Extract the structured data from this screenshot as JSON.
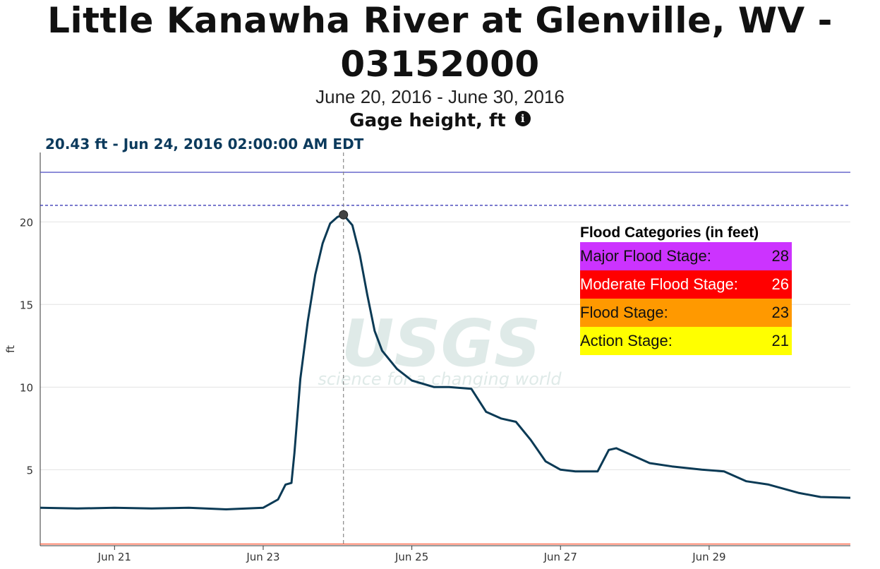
{
  "header": {
    "title_line1": "Little Kanawha River at Glenville, WV -",
    "title_line2": "03152000",
    "date_range": "June 20, 2016 - June 30, 2016",
    "parameter": "Gage height, ft",
    "info_glyph": "i",
    "tooltip": "20.43 ft - Jun 24, 2016 02:00:00 AM EDT"
  },
  "watermark": {
    "logo": "USGS",
    "tagline": "science for a changing world"
  },
  "legend": {
    "title": "Flood Categories (in feet)",
    "items": [
      {
        "label": "Major Flood Stage:",
        "value": "28",
        "color": "#cc33ff",
        "text_color": "#111111"
      },
      {
        "label": "Moderate Flood Stage:",
        "value": "26",
        "color": "#ff0000",
        "text_color": "#ffffff"
      },
      {
        "label": "Flood Stage:",
        "value": "23",
        "color": "#ff9900",
        "text_color": "#111111"
      },
      {
        "label": "Action Stage:",
        "value": "21",
        "color": "#ffff00",
        "text_color": "#111111"
      }
    ]
  },
  "chart_data": {
    "type": "line",
    "ylabel": "ft",
    "xlabel": "",
    "x_ticks": [
      {
        "x": 1,
        "label": "Jun 21"
      },
      {
        "x": 3,
        "label": "Jun 23"
      },
      {
        "x": 5,
        "label": "Jun 25"
      },
      {
        "x": 7,
        "label": "Jun 27"
      },
      {
        "x": 9,
        "label": "Jun 29"
      }
    ],
    "y_ticks": [
      5,
      10,
      15,
      20
    ],
    "xlim": [
      0,
      10.9
    ],
    "ylim": [
      0.4,
      24.2
    ],
    "grid": true,
    "threshold_lines": [
      {
        "y": 23,
        "color": "#5b5bc8",
        "style": "solid"
      },
      {
        "y": 21,
        "color": "#2a2ab0",
        "style": "dashed"
      },
      {
        "y": 0.5,
        "color": "#ff5533",
        "style": "solid"
      }
    ],
    "highlight": {
      "x": 4.08,
      "y": 20.43
    },
    "series": [
      {
        "color": "#0b3a55",
        "x": [
          0,
          0.5,
          1,
          1.5,
          2,
          2.5,
          3.0,
          3.2,
          3.3,
          3.38,
          3.42,
          3.5,
          3.6,
          3.7,
          3.8,
          3.9,
          4.0,
          4.08,
          4.2,
          4.3,
          4.4,
          4.5,
          4.6,
          4.8,
          5.0,
          5.3,
          5.5,
          5.8,
          6.0,
          6.2,
          6.4,
          6.6,
          6.8,
          7.0,
          7.2,
          7.5,
          7.65,
          7.75,
          7.9,
          8.2,
          8.5,
          8.9,
          9.2,
          9.5,
          9.8,
          10.2,
          10.5,
          10.9
        ],
        "y": [
          2.7,
          2.65,
          2.7,
          2.65,
          2.7,
          2.6,
          2.7,
          3.2,
          4.1,
          4.2,
          6.0,
          10.5,
          14.0,
          16.8,
          18.7,
          19.9,
          20.3,
          20.43,
          19.8,
          18.0,
          15.6,
          13.4,
          12.2,
          11.1,
          10.4,
          10.0,
          10.0,
          9.9,
          8.5,
          8.1,
          7.9,
          6.8,
          5.5,
          5.0,
          4.9,
          4.9,
          6.2,
          6.3,
          6.0,
          5.4,
          5.2,
          5.0,
          4.9,
          4.3,
          4.1,
          3.6,
          3.35,
          3.3
        ]
      }
    ]
  }
}
